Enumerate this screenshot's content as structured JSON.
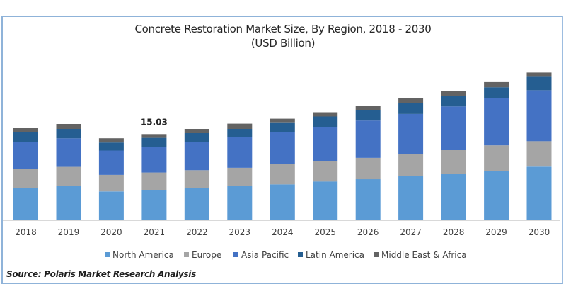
{
  "chart_data": {
    "type": "bar",
    "stacked": true,
    "title": "Concrete Restoration Market Size, By Region, 2018 - 2030",
    "subtitle": "(USD Billion)",
    "xlabel": "",
    "ylabel": "",
    "grid": false,
    "y_axis_visible": false,
    "ylim": [
      0,
      27
    ],
    "legend_position": "bottom",
    "categories": [
      "2018",
      "2019",
      "2020",
      "2021",
      "2022",
      "2023",
      "2024",
      "2025",
      "2026",
      "2027",
      "2028",
      "2029",
      "2030"
    ],
    "series": [
      {
        "name": "North America",
        "color": "#5B9BD5",
        "values": [
          5.61,
          5.93,
          5.03,
          5.31,
          5.61,
          5.93,
          6.26,
          6.76,
          7.16,
          7.66,
          8.11,
          8.61,
          9.35
        ]
      },
      {
        "name": "Europe",
        "color": "#A5A5A5",
        "values": [
          3.33,
          3.38,
          2.88,
          3.01,
          3.12,
          3.21,
          3.58,
          3.54,
          3.71,
          3.88,
          4.11,
          4.45,
          4.45
        ]
      },
      {
        "name": "Asia Pacific",
        "color": "#4472C4",
        "values": [
          4.64,
          4.98,
          4.25,
          4.52,
          4.85,
          5.36,
          5.59,
          5.97,
          6.51,
          6.99,
          7.62,
          8.19,
          8.86
        ]
      },
      {
        "name": "Latin America",
        "color": "#255E91",
        "values": [
          1.73,
          1.64,
          1.4,
          1.53,
          1.61,
          1.43,
          1.65,
          1.82,
          1.85,
          1.94,
          1.85,
          1.94,
          2.35
        ]
      },
      {
        "name": "Middle East & Africa",
        "color": "#636363",
        "values": [
          0.74,
          0.86,
          0.74,
          0.65,
          0.74,
          0.91,
          0.62,
          0.74,
          0.74,
          0.83,
          0.9,
          0.9,
          0.74
        ]
      }
    ],
    "annotations": [
      {
        "category": "2021",
        "text": "15.03"
      }
    ]
  },
  "source": "Source: Polaris  Market Research Analysis"
}
